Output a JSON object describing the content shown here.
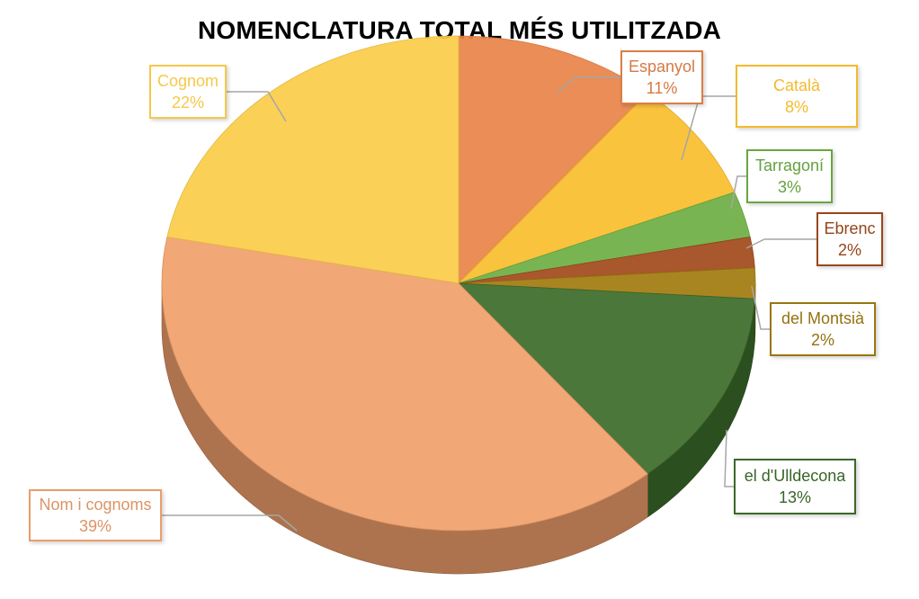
{
  "chart_data": {
    "type": "pie",
    "title": "NOMENCLATURA TOTAL MÉS UTILITZADA",
    "slices": [
      {
        "label": "Espanyol",
        "value": 11,
        "value_label": "11%",
        "color": "#E8844A"
      },
      {
        "label": "Català",
        "value": 8,
        "value_label": "8%",
        "color": "#F9BE2E"
      },
      {
        "label": "Tarragoní",
        "value": 3,
        "value_label": "3%",
        "color": "#6EAF45"
      },
      {
        "label": "Ebrenc",
        "value": 2,
        "value_label": "2%",
        "color": "#A34A1C"
      },
      {
        "label": "del Montsià",
        "value": 2,
        "value_label": "2%",
        "color": "#A27C10"
      },
      {
        "label": "el d'Ulldecona",
        "value": 13,
        "value_label": "13%",
        "color": "#3D6E2B"
      },
      {
        "label": "Nom i cognoms",
        "value": 39,
        "value_label": "39%",
        "color": "#F0A06C"
      },
      {
        "label": "Cognom",
        "value": 22,
        "value_label": "22%",
        "color": "#FBCC4A"
      }
    ],
    "style": "3d-pie"
  }
}
